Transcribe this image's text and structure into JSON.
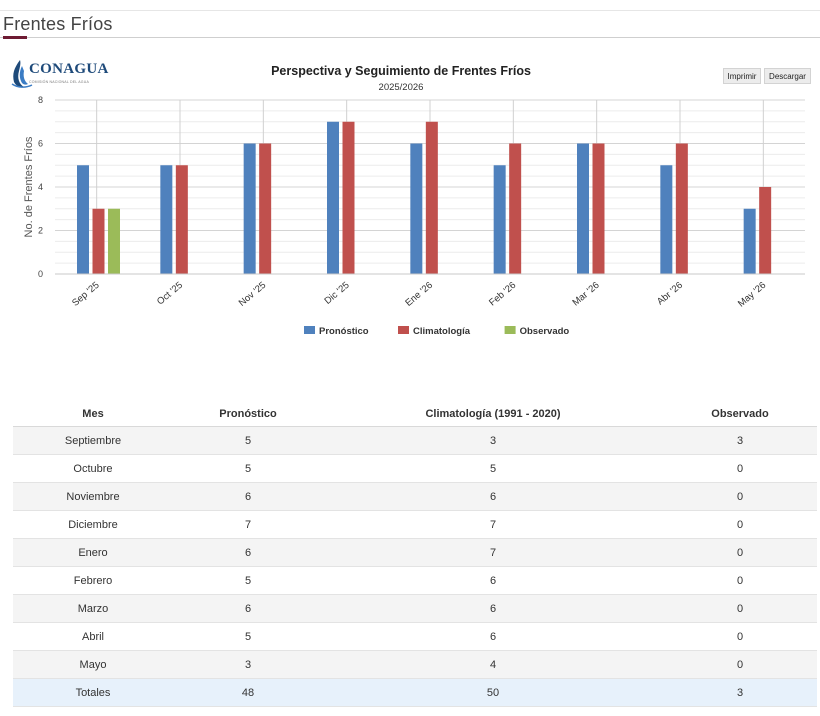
{
  "page": {
    "title": "Frentes Fríos"
  },
  "logo": {
    "name": "CONAGUA",
    "subtitle": "COMISIÓN NACIONAL DEL AGUA"
  },
  "chart_header": {
    "title": "Perspectiva y Seguimiento de Frentes Fríos",
    "subtitle": "2025/2026"
  },
  "toolbar": {
    "print_label": "Imprimir",
    "download_label": "Descargar"
  },
  "chart_data": {
    "type": "bar",
    "title": "Perspectiva y Seguimiento de Frentes Fríos",
    "subtitle": "2025/2026",
    "ylabel": "No. de Frentes Fríos",
    "xlabel": "",
    "ylim": [
      0,
      8
    ],
    "yticks": [
      0,
      2,
      4,
      6,
      8
    ],
    "grid": true,
    "legend_position": "bottom",
    "categories": [
      "Sep '25",
      "Oct '25",
      "Nov '25",
      "Dic '25",
      "Ene '26",
      "Feb '26",
      "Mar '26",
      "Abr '26",
      "May '26"
    ],
    "series": [
      {
        "name": "Pronóstico",
        "color": "#4f81bd",
        "values": [
          5,
          5,
          6,
          7,
          6,
          5,
          6,
          5,
          3
        ]
      },
      {
        "name": "Climatología",
        "color": "#c0504d",
        "values": [
          3,
          5,
          6,
          7,
          7,
          6,
          6,
          6,
          4
        ]
      },
      {
        "name": "Observado",
        "color": "#9bbb59",
        "values": [
          3,
          null,
          null,
          null,
          null,
          null,
          null,
          null,
          null
        ]
      }
    ]
  },
  "table": {
    "headers": [
      "Mes",
      "Pronóstico",
      "Climatología (1991 - 2020)",
      "Observado"
    ],
    "rows": [
      [
        "Septiembre",
        "5",
        "3",
        "3"
      ],
      [
        "Octubre",
        "5",
        "5",
        "0"
      ],
      [
        "Noviembre",
        "6",
        "6",
        "0"
      ],
      [
        "Diciembre",
        "7",
        "7",
        "0"
      ],
      [
        "Enero",
        "6",
        "7",
        "0"
      ],
      [
        "Febrero",
        "5",
        "6",
        "0"
      ],
      [
        "Marzo",
        "6",
        "6",
        "0"
      ],
      [
        "Abril",
        "5",
        "6",
        "0"
      ],
      [
        "Mayo",
        "3",
        "4",
        "0"
      ]
    ],
    "totals": [
      "Totales",
      "48",
      "50",
      "3"
    ]
  },
  "icons": {
    "logo": "conagua-logo-icon"
  }
}
